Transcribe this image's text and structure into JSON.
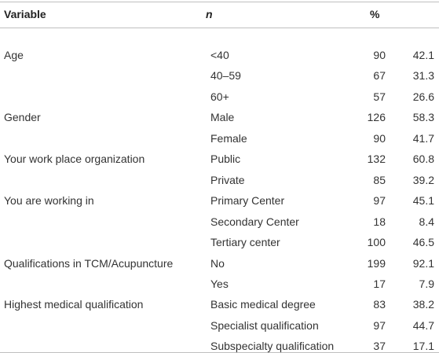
{
  "table": {
    "header": [
      "Variable",
      "n",
      "%"
    ],
    "groups": [
      {
        "variable": "Age",
        "rows": [
          [
            "<40",
            90,
            42.1
          ],
          [
            "40–59",
            67,
            31.3
          ],
          [
            "60+",
            57,
            26.6
          ]
        ]
      },
      {
        "variable": "Gender",
        "rows": [
          [
            "Male",
            126,
            58.3
          ],
          [
            "Female",
            90,
            41.7
          ]
        ]
      },
      {
        "variable": "Your work place organization",
        "rows": [
          [
            "Public",
            132,
            60.8
          ],
          [
            "Private",
            85,
            39.2
          ]
        ]
      },
      {
        "variable": "You are working in",
        "rows": [
          [
            "Primary Center",
            97,
            45.1
          ],
          [
            "Secondary Center",
            18,
            8.4
          ],
          [
            "Tertiary center",
            100,
            46.5
          ]
        ]
      },
      {
        "variable": "Qualifications in TCM/Acupuncture",
        "rows": [
          [
            "No",
            199,
            92.1
          ],
          [
            "Yes",
            17,
            7.9
          ]
        ]
      },
      {
        "variable": "Highest medical qualification",
        "rows": [
          [
            "Basic medical degree",
            83,
            38.2
          ],
          [
            "Specialist qualification",
            97,
            44.7
          ],
          [
            "Subspecialty qualification",
            37,
            17.1
          ]
        ]
      }
    ]
  }
}
